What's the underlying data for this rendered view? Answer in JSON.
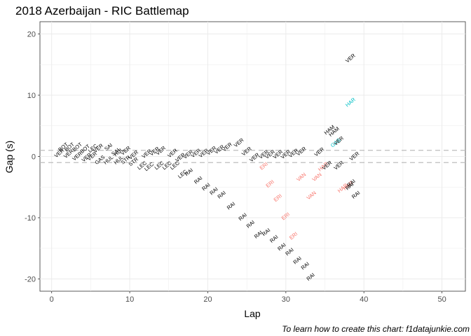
{
  "chart_data": {
    "type": "scatter",
    "title": "2018 Azerbaijan - RIC Battlemap",
    "xlabel": "Lap",
    "ylabel": "Gap (s)",
    "caption": "To learn how to create this chart: f1datajunkie.com",
    "xlim": [
      -1.5,
      53
    ],
    "ylim": [
      -22,
      22
    ],
    "x_ticks": [
      0,
      10,
      20,
      30,
      40,
      50
    ],
    "y_ticks": [
      -20,
      -10,
      0,
      10,
      20
    ],
    "grid": true,
    "reference_lines": [
      1,
      -1
    ],
    "label_rotation_deg": 40,
    "colors": {
      "default": "#000000",
      "ERI": "#f8766d",
      "VAN": "#f8766d",
      "HAR": "#00bfc4",
      "GAS": "#00bfc4",
      "grid": "#ebebeb",
      "reference": "#bdbdbd"
    },
    "points": [
      {
        "x": 1,
        "y": 0.5,
        "label": "VER",
        "color": "#000000"
      },
      {
        "x": 1.5,
        "y": 1.5,
        "label": "BOT",
        "color": "#000000"
      },
      {
        "x": 2.3,
        "y": 1.5,
        "label": "BOT",
        "color": "#000000"
      },
      {
        "x": 2.2,
        "y": 0.4,
        "label": "VER",
        "color": "#000000"
      },
      {
        "x": 3.3,
        "y": 1.5,
        "label": "BOT",
        "color": "#000000"
      },
      {
        "x": 3.3,
        "y": 0.0,
        "label": "VER",
        "color": "#000000"
      },
      {
        "x": 4.3,
        "y": 1.2,
        "label": "BOT",
        "color": "#000000"
      },
      {
        "x": 4.5,
        "y": -0.2,
        "label": "VER",
        "color": "#000000"
      },
      {
        "x": 5.3,
        "y": 1.3,
        "label": "LEC",
        "color": "#000000"
      },
      {
        "x": 5.2,
        "y": 0.0,
        "label": "VER",
        "color": "#000000"
      },
      {
        "x": 6.0,
        "y": 1.3,
        "label": "VER",
        "color": "#000000"
      },
      {
        "x": 6.2,
        "y": -0.6,
        "label": "GAS",
        "color": "#000000"
      },
      {
        "x": 7.3,
        "y": 1.5,
        "label": "SAI",
        "color": "#000000"
      },
      {
        "x": 7.3,
        "y": -0.6,
        "label": "HUL",
        "color": "#000000"
      },
      {
        "x": 8.2,
        "y": 0.7,
        "label": "SAI",
        "color": "#000000"
      },
      {
        "x": 8.6,
        "y": 0.7,
        "label": "HUL",
        "color": "#000000"
      },
      {
        "x": 8.6,
        "y": -0.6,
        "label": "HUL",
        "color": "#000000"
      },
      {
        "x": 9.5,
        "y": 0.9,
        "label": "VER",
        "color": "#000000"
      },
      {
        "x": 9.5,
        "y": -0.6,
        "label": "STR",
        "color": "#000000"
      },
      {
        "x": 10.5,
        "y": 0.2,
        "label": "VER",
        "color": "#000000"
      },
      {
        "x": 10.5,
        "y": -0.9,
        "label": "STR",
        "color": "#000000"
      },
      {
        "x": 11.6,
        "y": -1.5,
        "label": "LEC",
        "color": "#000000"
      },
      {
        "x": 12.2,
        "y": 0.4,
        "label": "VER",
        "color": "#000000"
      },
      {
        "x": 12.5,
        "y": -1.7,
        "label": "LEC",
        "color": "#000000"
      },
      {
        "x": 13.2,
        "y": 0.8,
        "label": "VER",
        "color": "#000000"
      },
      {
        "x": 14.0,
        "y": 0.9,
        "label": "VER",
        "color": "#000000"
      },
      {
        "x": 13.8,
        "y": -1.5,
        "label": "LEC",
        "color": "#000000"
      },
      {
        "x": 14.8,
        "y": -1.5,
        "label": "LEC",
        "color": "#000000"
      },
      {
        "x": 15.5,
        "y": 0.5,
        "label": "VER",
        "color": "#000000"
      },
      {
        "x": 15.8,
        "y": -1.5,
        "label": "LEC",
        "color": "#000000"
      },
      {
        "x": 16.5,
        "y": -0.2,
        "label": "VER",
        "color": "#000000"
      },
      {
        "x": 16.8,
        "y": -2.9,
        "label": "LEC",
        "color": "#000000"
      },
      {
        "x": 17.5,
        "y": 0.3,
        "label": "VER",
        "color": "#000000"
      },
      {
        "x": 17.6,
        "y": -2.6,
        "label": "RAI",
        "color": "#000000"
      },
      {
        "x": 18.5,
        "y": 0.5,
        "label": "VER",
        "color": "#000000"
      },
      {
        "x": 18.8,
        "y": -3.9,
        "label": "RAI",
        "color": "#000000"
      },
      {
        "x": 19.5,
        "y": 0.5,
        "label": "VER",
        "color": "#000000"
      },
      {
        "x": 19.8,
        "y": -5.0,
        "label": "RAI",
        "color": "#000000"
      },
      {
        "x": 20.5,
        "y": 0.9,
        "label": "VER",
        "color": "#000000"
      },
      {
        "x": 20.8,
        "y": -5.7,
        "label": "RAI",
        "color": "#000000"
      },
      {
        "x": 21.5,
        "y": 1.1,
        "label": "VER",
        "color": "#000000"
      },
      {
        "x": 21.8,
        "y": -6.3,
        "label": "RAI",
        "color": "#000000"
      },
      {
        "x": 22.5,
        "y": 1.5,
        "label": "VER",
        "color": "#000000"
      },
      {
        "x": 23.0,
        "y": -8.1,
        "label": "RAI",
        "color": "#000000"
      },
      {
        "x": 24.0,
        "y": 2.2,
        "label": "VER",
        "color": "#000000"
      },
      {
        "x": 24.5,
        "y": -9.9,
        "label": "RAI",
        "color": "#000000"
      },
      {
        "x": 25.0,
        "y": 0.8,
        "label": "VER",
        "color": "#000000"
      },
      {
        "x": 25.5,
        "y": -11.1,
        "label": "RAI",
        "color": "#000000"
      },
      {
        "x": 26.0,
        "y": -0.2,
        "label": "VER",
        "color": "#000000"
      },
      {
        "x": 26.5,
        "y": -12.8,
        "label": "RAI",
        "color": "#000000"
      },
      {
        "x": 27.2,
        "y": 0.3,
        "label": "VER",
        "color": "#000000"
      },
      {
        "x": 27.2,
        "y": -1.6,
        "label": "ERI",
        "color": "#f8766d"
      },
      {
        "x": 27.5,
        "y": -12.4,
        "label": "RAI",
        "color": "#000000"
      },
      {
        "x": 28.0,
        "y": 0.3,
        "label": "VER",
        "color": "#000000"
      },
      {
        "x": 28.0,
        "y": -4.5,
        "label": "ERI",
        "color": "#f8766d"
      },
      {
        "x": 28.5,
        "y": -13.5,
        "label": "RAI",
        "color": "#000000"
      },
      {
        "x": 29.0,
        "y": 0.3,
        "label": "VER",
        "color": "#000000"
      },
      {
        "x": 29.0,
        "y": -6.8,
        "label": "ERI",
        "color": "#f8766d"
      },
      {
        "x": 29.5,
        "y": -14.8,
        "label": "RAI",
        "color": "#000000"
      },
      {
        "x": 30.0,
        "y": 0.3,
        "label": "VER",
        "color": "#000000"
      },
      {
        "x": 30.0,
        "y": -9.8,
        "label": "ERI",
        "color": "#f8766d"
      },
      {
        "x": 30.5,
        "y": -15.6,
        "label": "RAI",
        "color": "#000000"
      },
      {
        "x": 31.0,
        "y": 0.5,
        "label": "VER",
        "color": "#000000"
      },
      {
        "x": 31.0,
        "y": -13.0,
        "label": "ERI",
        "color": "#f8766d"
      },
      {
        "x": 31.5,
        "y": -17.0,
        "label": "RAI",
        "color": "#000000"
      },
      {
        "x": 32.0,
        "y": 0.8,
        "label": "VER",
        "color": "#000000"
      },
      {
        "x": 32.0,
        "y": -3.4,
        "label": "VAN",
        "color": "#f8766d"
      },
      {
        "x": 32.5,
        "y": -17.9,
        "label": "RAI",
        "color": "#000000"
      },
      {
        "x": 33.2,
        "y": -19.7,
        "label": "RAI",
        "color": "#000000"
      },
      {
        "x": 33.3,
        "y": -6.4,
        "label": "VAN",
        "color": "#f8766d"
      },
      {
        "x": 34.0,
        "y": -3.4,
        "label": "VAN",
        "color": "#f8766d"
      },
      {
        "x": 34.3,
        "y": 0.7,
        "label": "VER",
        "color": "#000000"
      },
      {
        "x": 34.8,
        "y": -1.7,
        "label": "HAR",
        "color": "#f8766d"
      },
      {
        "x": 35.3,
        "y": -1.5,
        "label": "VER",
        "color": "#000000"
      },
      {
        "x": 35.6,
        "y": 4.3,
        "label": "HAM",
        "color": "#000000"
      },
      {
        "x": 36.2,
        "y": 4.0,
        "label": "HAM",
        "color": "#000000"
      },
      {
        "x": 36.4,
        "y": 2.2,
        "label": "GAS",
        "color": "#00bfc4"
      },
      {
        "x": 36.8,
        "y": 2.5,
        "label": "VER",
        "color": "#000000"
      },
      {
        "x": 36.8,
        "y": -1.5,
        "label": "VER",
        "color": "#000000"
      },
      {
        "x": 37.3,
        "y": -5.2,
        "label": "HAR",
        "color": "#f8766d"
      },
      {
        "x": 38.0,
        "y": -4.8,
        "label": "HAR",
        "color": "#f8766d"
      },
      {
        "x": 38.2,
        "y": -4.9,
        "label": "RAI",
        "color": "#000000"
      },
      {
        "x": 38.3,
        "y": 8.8,
        "label": "HAR",
        "color": "#00bfc4"
      },
      {
        "x": 38.3,
        "y": 16.0,
        "label": "VER",
        "color": "#000000"
      },
      {
        "x": 38.4,
        "y": -4.4,
        "label": "RAI",
        "color": "#000000"
      },
      {
        "x": 38.8,
        "y": 0.0,
        "label": "VER",
        "color": "#000000"
      },
      {
        "x": 39.0,
        "y": -6.3,
        "label": "RAI",
        "color": "#000000"
      }
    ]
  }
}
